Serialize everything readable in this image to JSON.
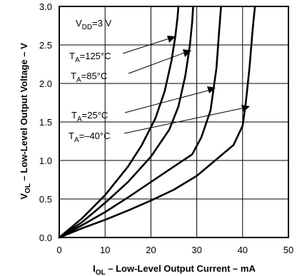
{
  "chart_data": {
    "type": "line",
    "xlabel_main": "I",
    "xlabel_sub": "OL",
    "xlabel_rest": " – Low-Level Output Current – mA",
    "ylabel_main": "V",
    "ylabel_sub": "OL",
    "ylabel_rest": "  – Low-Level Output Voltage – V",
    "xlim": [
      0,
      50
    ],
    "ylim": [
      0,
      3.0
    ],
    "x_ticks": [
      "0",
      "10",
      "20",
      "30",
      "40",
      "50"
    ],
    "y_ticks": [
      "0.0",
      "0.5",
      "1.0",
      "1.5",
      "2.0",
      "2.5",
      "3.0"
    ],
    "x_tick_values": [
      0,
      10,
      20,
      30,
      40,
      50
    ],
    "y_tick_values": [
      0,
      0.5,
      1.0,
      1.5,
      2.0,
      2.5,
      3.0
    ],
    "grid": true,
    "condition": {
      "main": "V",
      "sub": "DD",
      "rest": "=3 V"
    },
    "series": [
      {
        "label_main": "T",
        "label_sub": "A",
        "label_rest": "=125°C",
        "x": [
          0,
          5,
          10,
          15,
          18,
          21,
          23,
          24.5,
          25.3,
          25.8,
          26
        ],
        "y": [
          0,
          0.25,
          0.55,
          0.92,
          1.2,
          1.55,
          1.9,
          2.3,
          2.6,
          2.85,
          3.0
        ]
      },
      {
        "label_main": "T",
        "label_sub": "A",
        "label_rest": "=85°C",
        "x": [
          0,
          5,
          10,
          15,
          20,
          24,
          26,
          27.5,
          28.5,
          29,
          29.2
        ],
        "y": [
          0,
          0.2,
          0.45,
          0.72,
          1.05,
          1.4,
          1.7,
          2.1,
          2.5,
          2.8,
          3.0
        ]
      },
      {
        "label_main": "T",
        "label_sub": "A",
        "label_rest": "=25°C",
        "x": [
          0,
          5,
          10,
          15,
          20,
          25,
          29,
          31,
          33,
          34.3,
          34.9,
          35.3
        ],
        "y": [
          0,
          0.16,
          0.33,
          0.52,
          0.72,
          0.92,
          1.08,
          1.3,
          1.65,
          2.2,
          2.7,
          3.0
        ]
      },
      {
        "label_main": "T",
        "label_sub": "A",
        "label_rest": "=–40°C",
        "x": [
          0,
          5,
          10,
          15,
          20,
          25,
          30,
          35,
          38,
          40,
          40.7,
          41.5,
          42.2,
          42.7
        ],
        "y": [
          0,
          0.12,
          0.23,
          0.35,
          0.48,
          0.62,
          0.8,
          1.05,
          1.2,
          1.45,
          1.75,
          2.2,
          2.7,
          3.0
        ]
      }
    ]
  }
}
